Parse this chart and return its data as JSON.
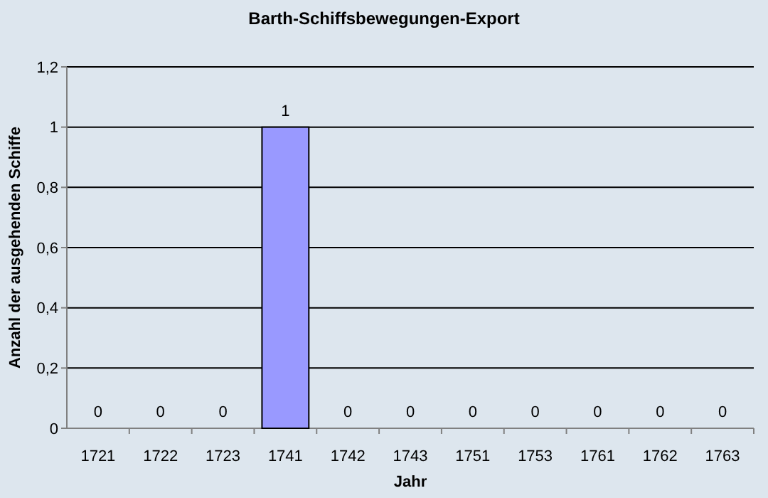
{
  "chart_data": {
    "type": "bar",
    "title": "Barth-Schiffsbewegungen-Export",
    "xlabel": "Jahr",
    "ylabel": "Anzahl der ausgehenden Schiffe",
    "categories": [
      "1721",
      "1722",
      "1723",
      "1741",
      "1742",
      "1743",
      "1751",
      "1753",
      "1761",
      "1762",
      "1763"
    ],
    "values": [
      0,
      0,
      0,
      1,
      0,
      0,
      0,
      0,
      0,
      0,
      0
    ],
    "color": "#9999ff",
    "ylim": [
      0,
      1.2
    ],
    "yticks": [
      0,
      {
        "value": 0.2,
        "label": "0,2"
      },
      {
        "value": 0.4,
        "label": "0,4"
      },
      {
        "value": 0.6,
        "label": "0,6"
      },
      {
        "value": 0.8,
        "label": "0,8"
      },
      1,
      {
        "value": 1.2,
        "label": "1,2"
      }
    ],
    "grid": "y",
    "data_labels": true
  }
}
